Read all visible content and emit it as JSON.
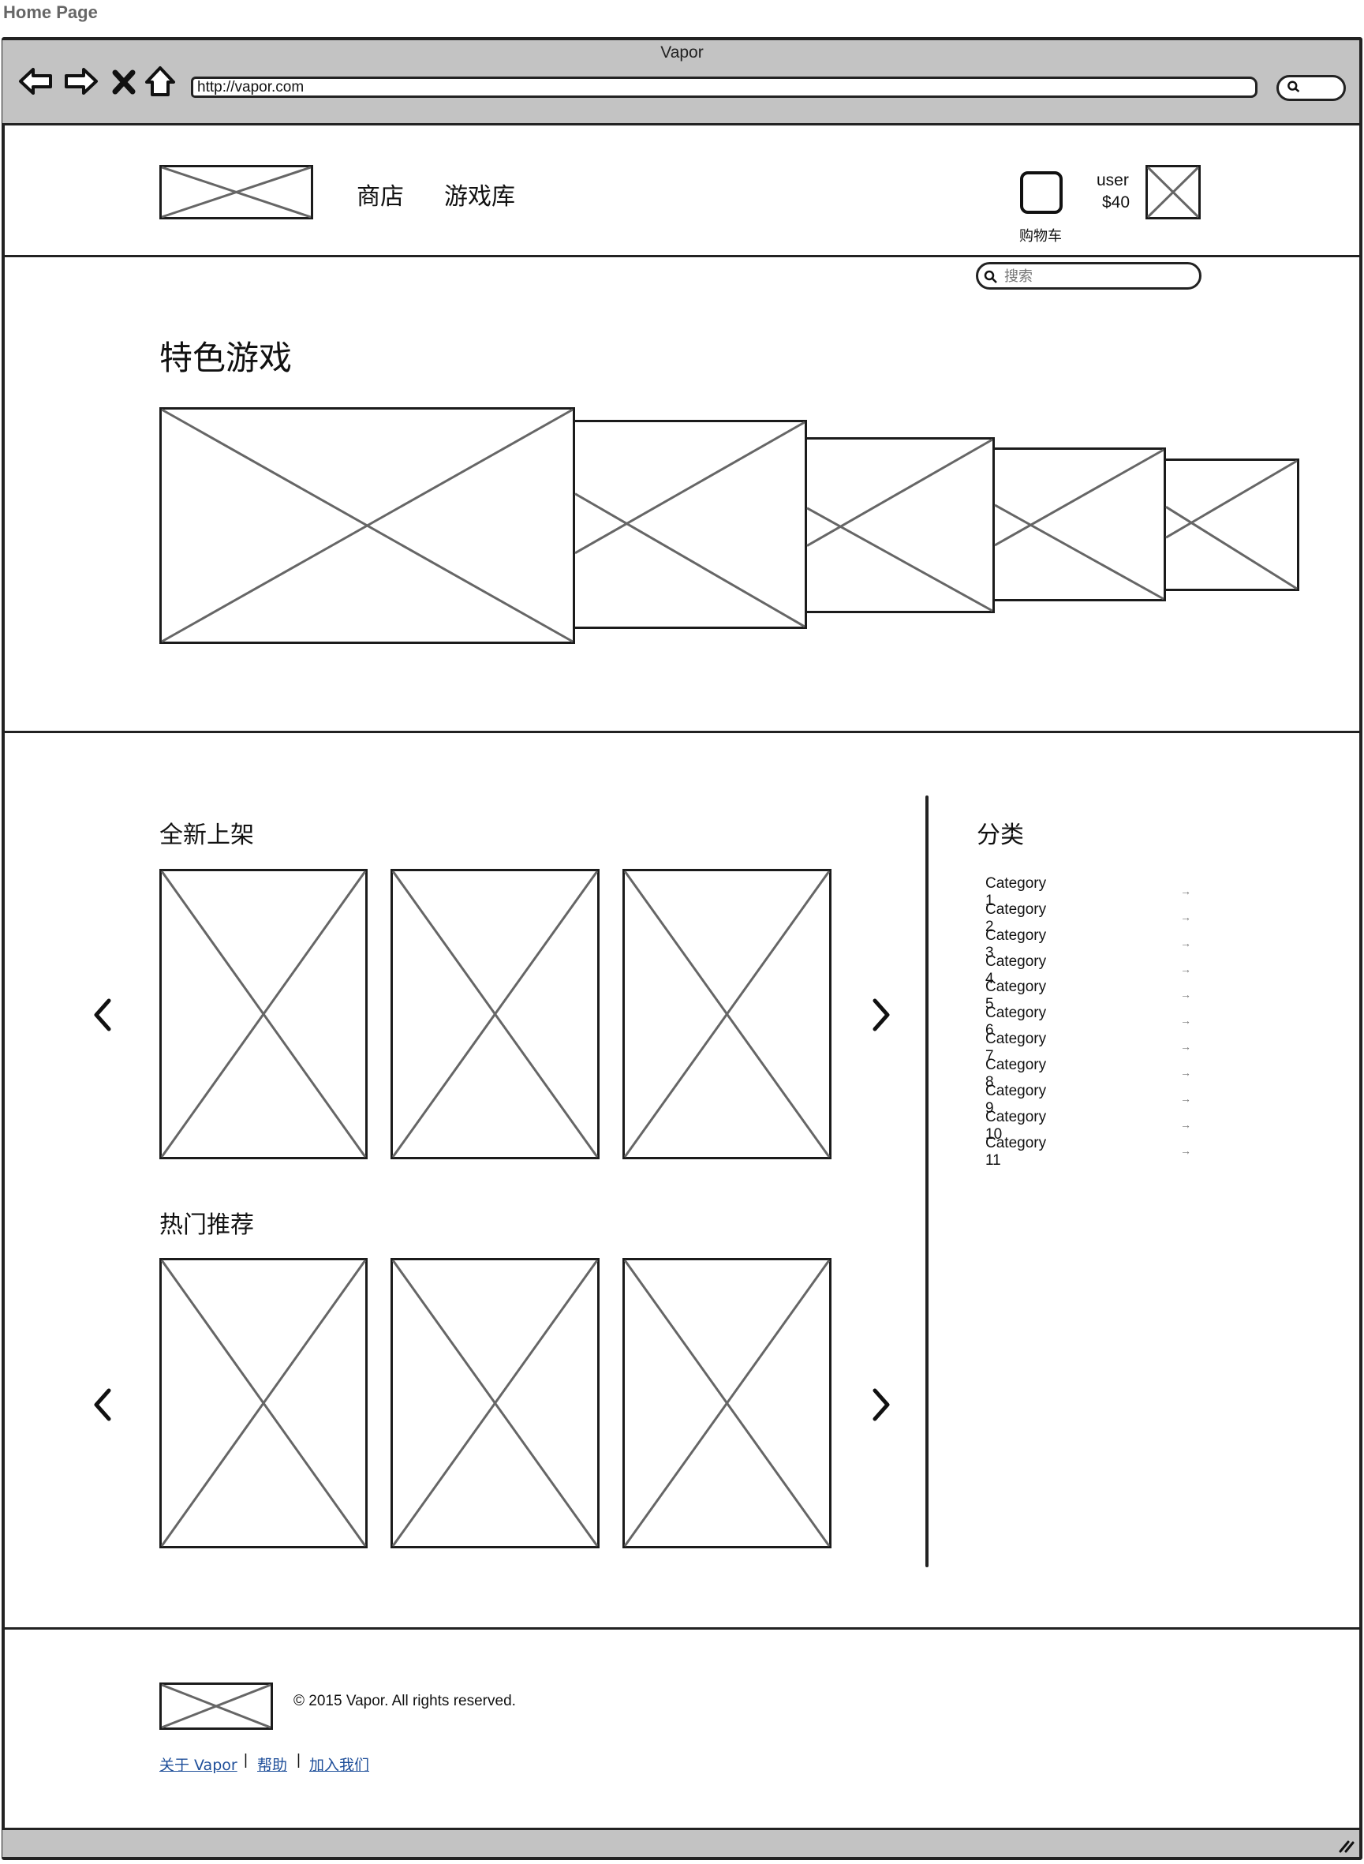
{
  "page_label": "Home Page",
  "browser": {
    "title": "Vapor",
    "url": "http://vapor.com",
    "nav_icons": [
      "back-icon",
      "forward-icon",
      "stop-icon",
      "home-icon",
      "browser-search-icon"
    ]
  },
  "header": {
    "nav": [
      "商店",
      "游戏库"
    ],
    "cart_label": "购物车",
    "user_name": "user",
    "user_balance": "$40",
    "search_placeholder": "搜索"
  },
  "featured": {
    "title": "特色游戏"
  },
  "new_arrivals": {
    "title": "全新上架"
  },
  "hot": {
    "title": "热门推荐"
  },
  "categories": {
    "title": "分类",
    "items": [
      "Category 1",
      "Category 2",
      "Category 3",
      "Category 4",
      "Category 5",
      "Category 6",
      "Category 7",
      "Category 8",
      "Category 9",
      "Category 10",
      "Category 11"
    ]
  },
  "footer": {
    "copyright": "© 2015 Vapor. All rights reserved.",
    "links": [
      "关于 Vapor",
      "帮助",
      "加入我们"
    ],
    "separator": "|"
  }
}
